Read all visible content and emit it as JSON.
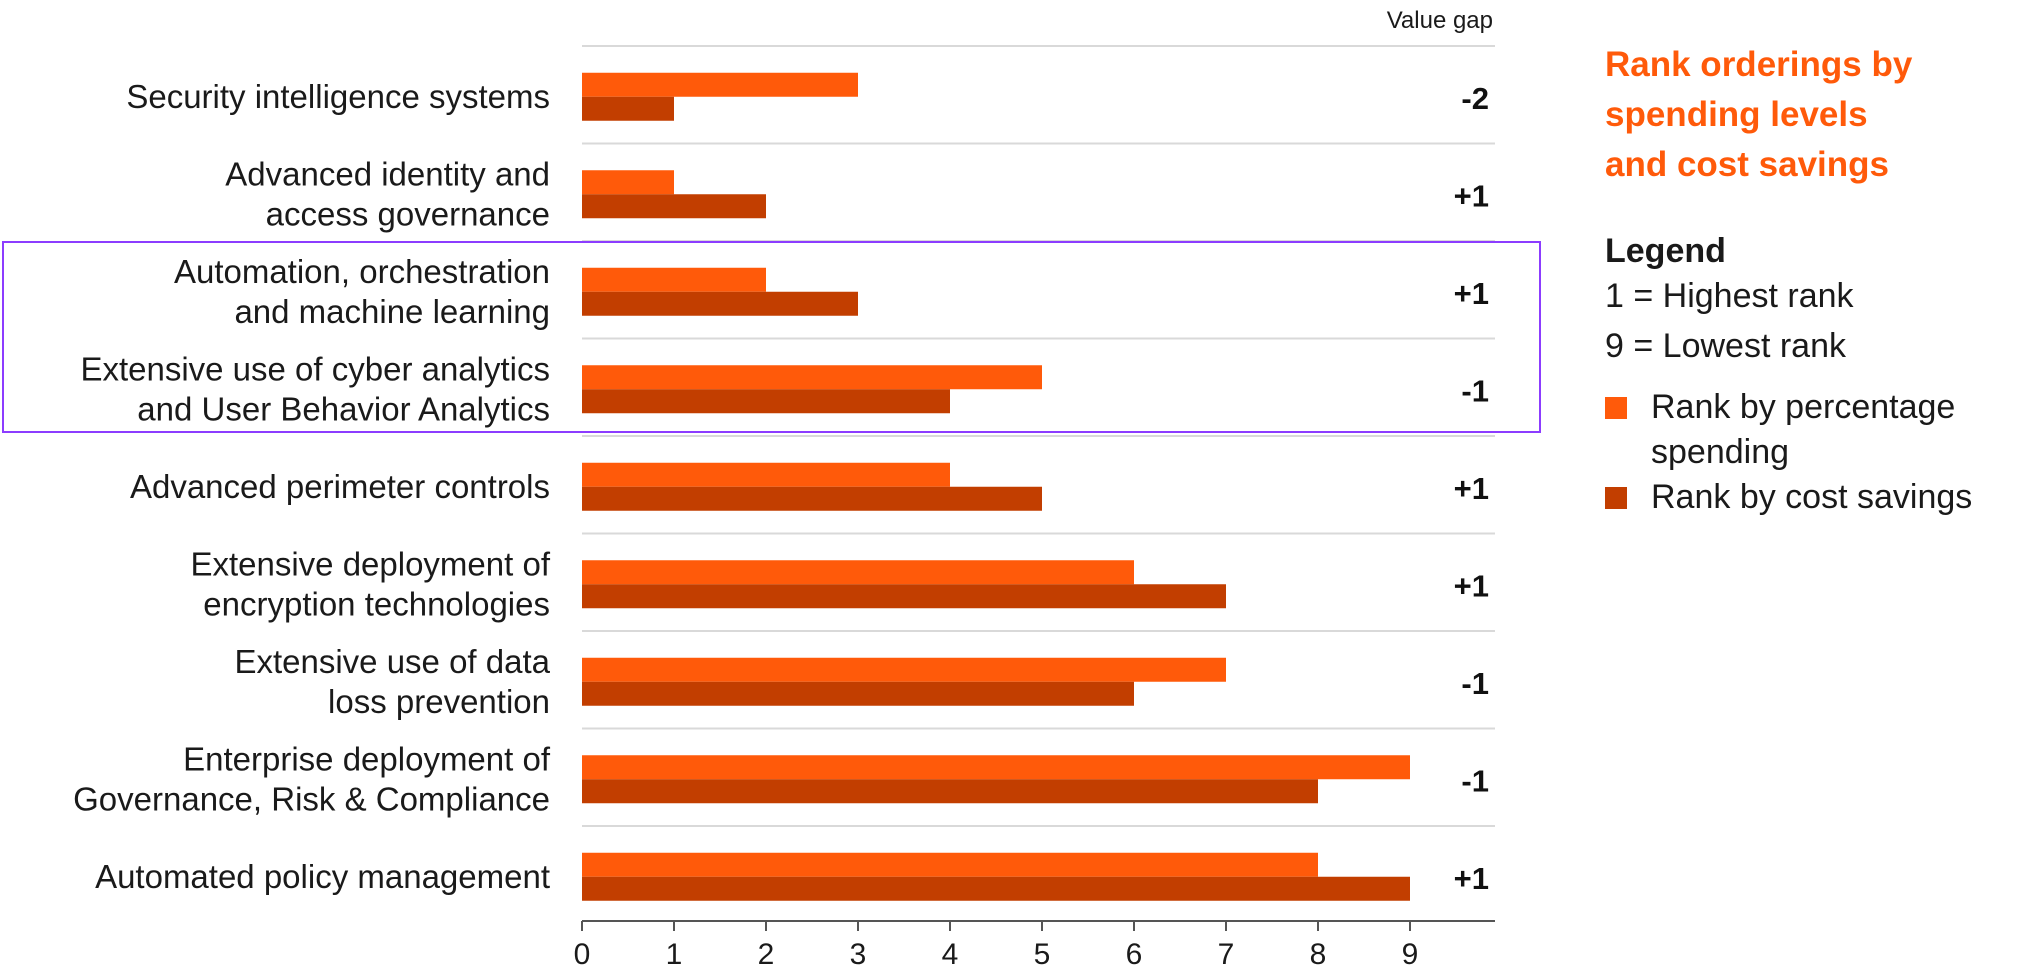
{
  "chart_data": {
    "type": "bar",
    "orientation": "horizontal",
    "categories": [
      [
        "Security intelligence systems"
      ],
      [
        "Advanced identity and",
        "access governance"
      ],
      [
        "Automation, orchestration",
        "and machine learning"
      ],
      [
        "Extensive use of cyber analytics",
        "and User Behavior Analytics"
      ],
      [
        "Advanced perimeter controls"
      ],
      [
        "Extensive deployment of",
        "encryption technologies"
      ],
      [
        "Extensive use of data",
        "loss prevention"
      ],
      [
        "Enterprise deployment of",
        "Governance, Risk & Compliance"
      ],
      [
        "Automated policy management"
      ]
    ],
    "series": [
      {
        "name": "Rank by percentage spending",
        "color": "#ff5a0a",
        "values": [
          3,
          1,
          2,
          5,
          4,
          6,
          7,
          9,
          8
        ]
      },
      {
        "name": "Rank by cost savings",
        "color": "#c23e00",
        "values": [
          1,
          2,
          3,
          4,
          5,
          7,
          6,
          8,
          9
        ]
      }
    ],
    "value_gap_header": "Value gap",
    "value_gaps": [
      "-2",
      "+1",
      "+1",
      "-1",
      "+1",
      "+1",
      "-1",
      "-1",
      "+1"
    ],
    "xlim": [
      0,
      9
    ],
    "xticks": [
      "0",
      "1",
      "2",
      "3",
      "4",
      "5",
      "6",
      "7",
      "8",
      "9"
    ],
    "highlighted_rows": [
      2,
      3
    ],
    "highlight_color": "#8c3cff",
    "grid": false
  },
  "sidebar": {
    "title_lines": [
      "Rank orderings by",
      "spending levels",
      "and cost savings"
    ],
    "legend_title": "Legend",
    "legend_lines": [
      "1 = Highest rank",
      "9 = Lowest rank"
    ],
    "legend_items": [
      {
        "label": "Rank by percentage spending",
        "color": "#ff5a0a"
      },
      {
        "label": "Rank by cost savings",
        "color": "#c23e00"
      }
    ]
  }
}
